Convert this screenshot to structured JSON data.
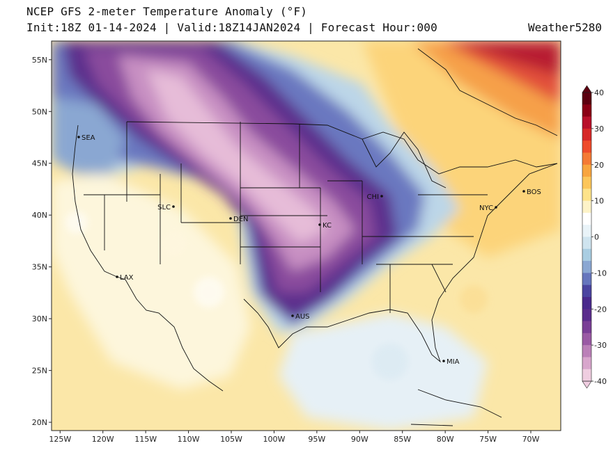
{
  "header": {
    "title": "NCEP GFS 2-meter Temperature Anomaly (°F)",
    "subtitle": "Init:18Z 01-14-2024 | Valid:18Z14JAN2024 | Forecast Hour:000",
    "brand": "Weather5280"
  },
  "map": {
    "lat_ticks": [
      "55N",
      "50N",
      "45N",
      "40N",
      "35N",
      "30N",
      "25N",
      "20N"
    ],
    "lon_ticks": [
      "125W",
      "120W",
      "115W",
      "110W",
      "105W",
      "100W",
      "95W",
      "90W",
      "85W",
      "80W",
      "75W",
      "70W"
    ],
    "cities": [
      {
        "label": "SEA"
      },
      {
        "label": "SLC"
      },
      {
        "label": "DEN"
      },
      {
        "label": "KC"
      },
      {
        "label": "CHI"
      },
      {
        "label": "NYC"
      },
      {
        "label": "BOS"
      },
      {
        "label": "LAX"
      },
      {
        "label": "AUS"
      },
      {
        "label": "MIA"
      }
    ]
  },
  "colorbar": {
    "labels": [
      "40",
      "30",
      "20",
      "10",
      "0",
      "-10",
      "-20",
      "-30",
      "-40"
    ],
    "colors": [
      "#5c0010",
      "#8a0015",
      "#b8102a",
      "#d62828",
      "#ee4b2b",
      "#f47a35",
      "#f8a53f",
      "#fcc65a",
      "#fde38a",
      "#fdf3c8",
      "#ffffff",
      "#e9f3f8",
      "#cfe4ef",
      "#a9cde2",
      "#8aa7d2",
      "#6676bd",
      "#4b45a0",
      "#4a2a8c",
      "#5b2d8c",
      "#7a3f96",
      "#9a5aa4",
      "#bb80b8",
      "#d8a6cc",
      "#efcde0"
    ]
  }
}
